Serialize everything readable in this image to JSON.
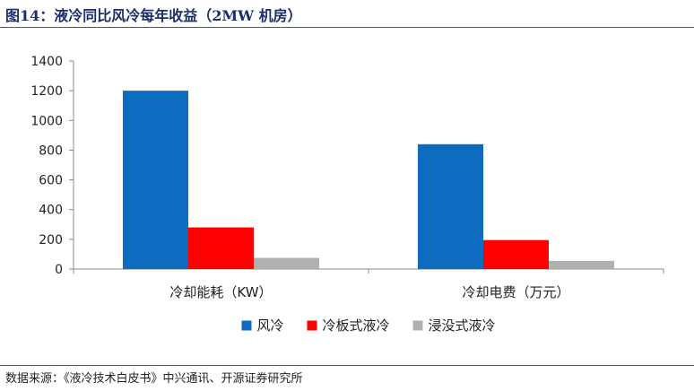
{
  "figure": {
    "title": "图14：液冷同比风冷每年收益（2MW 机房）",
    "source": "数据来源：《液冷技术白皮书》中兴通讯、开源证券研究所"
  },
  "chart_data": {
    "type": "bar",
    "categories": [
      "冷却能耗（KW）",
      "冷却电费（万元）"
    ],
    "series": [
      {
        "name": "风冷",
        "color": "#0d6cc0",
        "values": [
          1200,
          840
        ]
      },
      {
        "name": "冷板式液冷",
        "color": "#ff0000",
        "values": [
          280,
          195
        ]
      },
      {
        "name": "浸没式液冷",
        "color": "#b0b0b0",
        "values": [
          75,
          55
        ]
      }
    ],
    "ylim": [
      0,
      1400
    ],
    "yticks": [
      "0",
      "200",
      "400",
      "600",
      "800",
      "1000",
      "1200",
      "1400"
    ],
    "grid": false,
    "legend": "bottom"
  }
}
